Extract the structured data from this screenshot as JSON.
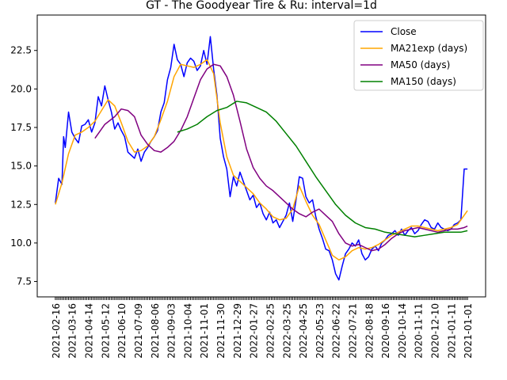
{
  "chart_data": {
    "type": "line",
    "title": "GT - The Goodyear Tire & Ru: interval=1d",
    "xlabel": "",
    "ylabel": "",
    "ylim": [
      6.5,
      24.8
    ],
    "yticks": [
      7.5,
      10.0,
      12.5,
      15.0,
      17.5,
      20.0,
      22.5
    ],
    "ytick_labels": [
      "7.5",
      "10.0",
      "12.5",
      "15.0",
      "17.5",
      "20.0",
      "22.5"
    ],
    "xtick_labels": [
      "2021-02-16",
      "2021-03-16",
      "2021-04-14",
      "2021-05-12",
      "2021-06-10",
      "2021-07-09",
      "2021-08-06",
      "2021-09-03",
      "2021-10-04",
      "2021-11-01",
      "2021-11-30",
      "2021-12-29",
      "2022-01-27",
      "2022-02-25",
      "2022-03-25",
      "2022-04-25",
      "2022-05-23",
      "2022-06-22",
      "2022-07-21",
      "2022-08-18",
      "2020-09-16",
      "2020-10-14",
      "2020-11-11",
      "2020-12-10",
      "2021-01-11",
      "2021-01-01"
    ],
    "grid": false,
    "legend": {
      "placement": "top-right"
    },
    "series": [
      {
        "name": "Close",
        "color": "#0000ff",
        "x": [
          0,
          2,
          4,
          5,
          6,
          8,
          10,
          12,
          14,
          16,
          18,
          20,
          22,
          24,
          26,
          28,
          30,
          32,
          34,
          36,
          38,
          40,
          42,
          44,
          46,
          48,
          50,
          52,
          54,
          56,
          58,
          60,
          62,
          64,
          66,
          68,
          70,
          72,
          74,
          76,
          78,
          80,
          82,
          84,
          86,
          88,
          90,
          92,
          94,
          96,
          98,
          100,
          102,
          104,
          106,
          108,
          110,
          112,
          114,
          116,
          118,
          120,
          122,
          124,
          126,
          128,
          130,
          132,
          134,
          136,
          138,
          140,
          142,
          144,
          146,
          148,
          150,
          152,
          154,
          156,
          158,
          160,
          162,
          164,
          166,
          168,
          170,
          172,
          174,
          176,
          178,
          180,
          182,
          184,
          186,
          188,
          190,
          192,
          194,
          196,
          198,
          200,
          202,
          204,
          206,
          208,
          210,
          212,
          214,
          216,
          218,
          220,
          222,
          224,
          226,
          228,
          230,
          232,
          234,
          236,
          238,
          240,
          242,
          244,
          246,
          248,
          250
        ],
        "values": [
          12.6,
          14.2,
          13.8,
          16.9,
          16.2,
          18.5,
          17.2,
          16.8,
          16.5,
          17.6,
          17.7,
          18.0,
          17.2,
          17.8,
          19.5,
          18.9,
          20.2,
          19.3,
          18.5,
          17.4,
          17.8,
          17.3,
          16.9,
          15.9,
          15.7,
          15.5,
          16.1,
          15.3,
          15.9,
          16.2,
          16.6,
          16.9,
          17.3,
          18.5,
          19.1,
          20.6,
          21.4,
          22.9,
          21.9,
          21.6,
          20.8,
          21.7,
          22.0,
          21.8,
          21.2,
          21.5,
          22.5,
          21.6,
          23.4,
          21.3,
          19.6,
          16.8,
          15.6,
          14.8,
          13.0,
          14.3,
          13.7,
          14.6,
          14.0,
          13.4,
          12.8,
          13.1,
          12.3,
          12.6,
          11.9,
          11.5,
          12.0,
          11.3,
          11.5,
          11.0,
          11.4,
          11.8,
          12.6,
          11.4,
          12.8,
          14.3,
          14.2,
          13.0,
          12.6,
          12.8,
          11.7,
          10.9,
          10.3,
          9.6,
          9.5,
          8.9,
          8.0,
          7.6,
          8.5,
          9.3,
          9.6,
          10.0,
          9.8,
          10.2,
          9.3,
          8.9,
          9.1,
          9.6,
          9.8,
          9.5,
          10.0,
          10.2,
          10.5,
          10.6,
          10.8,
          10.5,
          10.9,
          10.5,
          10.8,
          11.0,
          10.6,
          10.8,
          11.2,
          11.5,
          11.4,
          11.0,
          10.9,
          11.3,
          11.0,
          10.9,
          10.8,
          10.9,
          11.2,
          11.3,
          11.5,
          14.8,
          14.8
        ]
      },
      {
        "name": "MA21exp (days)",
        "color": "#ffa500",
        "x": [
          0,
          4,
          8,
          12,
          16,
          20,
          24,
          28,
          32,
          36,
          40,
          44,
          48,
          52,
          56,
          60,
          64,
          68,
          72,
          76,
          80,
          84,
          88,
          92,
          96,
          100,
          104,
          108,
          112,
          116,
          120,
          124,
          128,
          132,
          136,
          140,
          144,
          148,
          152,
          156,
          160,
          164,
          168,
          172,
          176,
          180,
          184,
          188,
          192,
          196,
          200,
          204,
          208,
          212,
          216,
          220,
          224,
          228,
          232,
          236,
          240,
          244,
          248,
          250
        ],
        "values": [
          12.5,
          13.9,
          15.8,
          17.0,
          17.2,
          17.5,
          17.9,
          18.6,
          19.3,
          18.9,
          17.8,
          16.6,
          15.9,
          16.0,
          16.3,
          16.9,
          18.0,
          19.2,
          20.8,
          21.6,
          21.5,
          21.4,
          21.6,
          21.9,
          21.0,
          17.8,
          15.6,
          14.4,
          14.0,
          13.6,
          13.2,
          12.6,
          12.2,
          11.7,
          11.5,
          11.6,
          12.2,
          13.7,
          12.7,
          11.8,
          11.2,
          10.2,
          9.2,
          8.9,
          9.1,
          9.5,
          9.7,
          9.6,
          9.7,
          9.9,
          10.2,
          10.5,
          10.7,
          10.9,
          11.1,
          11.1,
          11.0,
          10.9,
          10.8,
          10.9,
          11.0,
          11.2,
          11.8,
          12.1
        ]
      },
      {
        "name": "MA50 (days)",
        "color": "#800080",
        "x": [
          24,
          30,
          36,
          40,
          44,
          48,
          52,
          56,
          60,
          64,
          68,
          72,
          76,
          80,
          84,
          88,
          92,
          96,
          100,
          104,
          108,
          112,
          116,
          120,
          124,
          128,
          132,
          136,
          140,
          144,
          148,
          152,
          156,
          160,
          164,
          168,
          172,
          176,
          180,
          184,
          188,
          192,
          196,
          200,
          204,
          208,
          212,
          216,
          220,
          224,
          228,
          232,
          236,
          240,
          244,
          248,
          250
        ],
        "values": [
          16.8,
          17.7,
          18.2,
          18.7,
          18.6,
          18.2,
          17.0,
          16.4,
          16.0,
          15.9,
          16.2,
          16.6,
          17.3,
          18.2,
          19.4,
          20.6,
          21.3,
          21.6,
          21.5,
          20.8,
          19.6,
          17.9,
          16.1,
          14.9,
          14.2,
          13.7,
          13.4,
          13.0,
          12.6,
          12.2,
          11.9,
          11.7,
          12.0,
          12.2,
          11.8,
          11.4,
          10.6,
          10.0,
          9.8,
          9.9,
          9.7,
          9.5,
          9.6,
          9.9,
          10.3,
          10.6,
          10.8,
          10.9,
          11.0,
          10.9,
          10.8,
          10.7,
          10.8,
          10.9,
          10.9,
          11.0,
          11.1
        ]
      },
      {
        "name": "MA150 (days)",
        "color": "#008000",
        "x": [
          74,
          80,
          86,
          92,
          98,
          104,
          110,
          116,
          122,
          128,
          134,
          140,
          146,
          152,
          158,
          164,
          170,
          176,
          182,
          188,
          194,
          200,
          206,
          212,
          218,
          224,
          230,
          236,
          242,
          246,
          250
        ],
        "values": [
          17.2,
          17.4,
          17.7,
          18.2,
          18.6,
          18.8,
          19.2,
          19.1,
          18.8,
          18.5,
          17.9,
          17.1,
          16.3,
          15.3,
          14.3,
          13.4,
          12.5,
          11.8,
          11.3,
          11.0,
          10.9,
          10.7,
          10.6,
          10.5,
          10.4,
          10.5,
          10.6,
          10.7,
          10.7,
          10.7,
          10.8
        ]
      }
    ]
  }
}
